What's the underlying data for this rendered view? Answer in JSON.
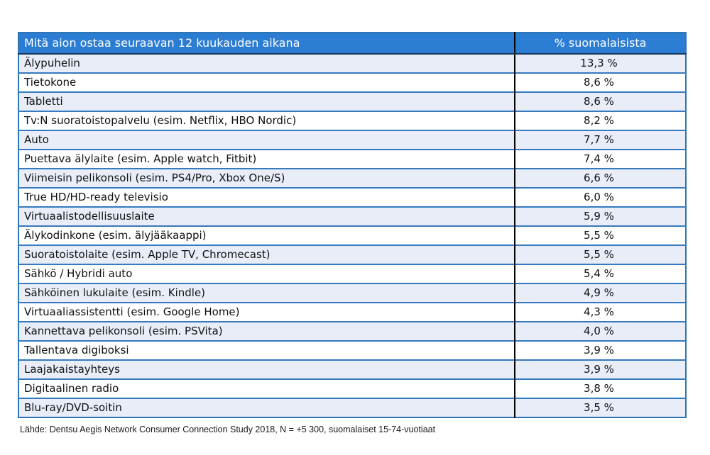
{
  "chart_data": {
    "type": "table",
    "title": "Mitä aion ostaa seuraavan 12 kuukauden aikana",
    "columns": [
      "Mitä aion ostaa seuraavan 12 kuukauden aikana",
      "% suomalaisista"
    ],
    "unit": "% suomalaisista",
    "values_numeric": [
      13.3,
      8.6,
      8.6,
      8.2,
      7.7,
      7.4,
      6.6,
      6.0,
      5.9,
      5.5,
      5.5,
      5.4,
      4.9,
      4.3,
      4.0,
      3.9,
      3.9,
      3.8,
      3.5
    ],
    "source": "Lähde: Dentsu Aegis Network Consumer Connection Study 2018, N = +5 300, suomalaiset 15-74-vuotiaat"
  },
  "table": {
    "header": {
      "item_col": "Mitä aion ostaa seuraavan 12 kuukauden aikana",
      "value_col": "% suomalaisista"
    },
    "rows": [
      {
        "label": "Älypuhelin",
        "value": "13,3 %"
      },
      {
        "label": "Tietokone",
        "value": "8,6 %"
      },
      {
        "label": "Tabletti",
        "value": "8,6 %"
      },
      {
        "label": "Tv:N suoratoistopalvelu (esim. Netflix, HBO Nordic)",
        "value": "8,2 %"
      },
      {
        "label": "Auto",
        "value": "7,7 %"
      },
      {
        "label": "Puettava älylaite (esim. Apple watch, Fitbit)",
        "value": "7,4 %"
      },
      {
        "label": "Viimeisin pelikonsoli (esim. PS4/Pro, Xbox One/S)",
        "value": "6,6 %"
      },
      {
        "label": "True HD/HD-ready televisio",
        "value": "6,0 %"
      },
      {
        "label": "Virtuaalistodellisuuslaite",
        "value": "5,9 %"
      },
      {
        "label": "Älykodinkone (esim. älyjääkaappi)",
        "value": "5,5 %"
      },
      {
        "label": "Suoratoistolaite (esim. Apple TV, Chromecast)",
        "value": "5,5 %"
      },
      {
        "label": "Sähkö / Hybridi auto",
        "value": "5,4 %"
      },
      {
        "label": "Sähköinen lukulaite (esim. Kindle)",
        "value": "4,9 %"
      },
      {
        "label": "Virtuaaliassistentti (esim. Google Home)",
        "value": "4,3 %"
      },
      {
        "label": "Kannettava pelikonsoli (esim. PSVita)",
        "value": "4,0 %"
      },
      {
        "label": "Tallentava digiboksi",
        "value": "3,9 %"
      },
      {
        "label": "Laajakaistayhteys",
        "value": "3,9 %"
      },
      {
        "label": "Digitaalinen radio",
        "value": "3,8 %"
      },
      {
        "label": "Blu-ray/DVD-soitin",
        "value": "3,5 %"
      }
    ]
  },
  "footer": {
    "source_text": "Lähde: Dentsu Aegis Network Consumer Connection Study 2018, N = +5 300, suomalaiset 15-74-vuotiaat"
  },
  "colors": {
    "header_bg": "#2b7cd3",
    "header_text": "#ffffff",
    "row_alt_bg": "#e9edf8",
    "row_bg": "#ffffff",
    "border_blue": "#2e75b6",
    "row_separator_blue": "#3579be",
    "column_divider_black": "#000000",
    "body_text": "#111111"
  }
}
